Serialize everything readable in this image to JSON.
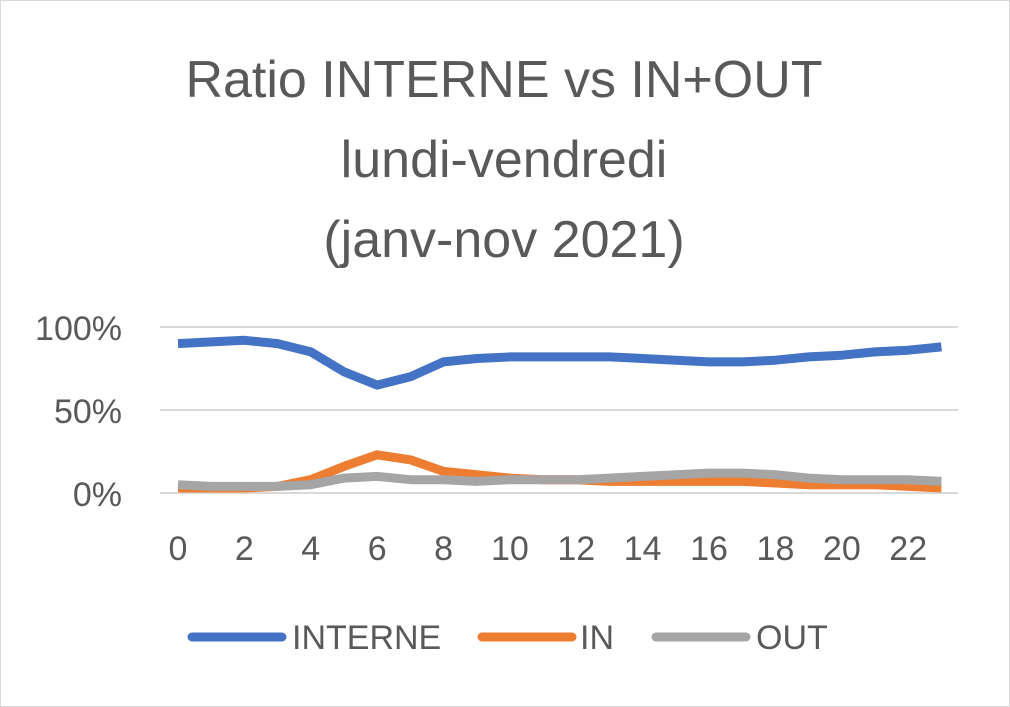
{
  "chart_data": {
    "type": "line",
    "title_lines": [
      "Ratio INTERNE vs IN+OUT",
      "lundi-vendredi",
      "(janv-nov 2021)"
    ],
    "x": [
      0,
      1,
      2,
      3,
      4,
      5,
      6,
      7,
      8,
      9,
      10,
      11,
      12,
      13,
      14,
      15,
      16,
      17,
      18,
      19,
      20,
      21,
      22,
      23
    ],
    "x_ticks": [
      0,
      2,
      4,
      6,
      8,
      10,
      12,
      14,
      16,
      18,
      20,
      22
    ],
    "y_ticks": [
      0,
      50,
      100
    ],
    "y_tick_labels": [
      "0%",
      "50%",
      "100%"
    ],
    "ylim": [
      0,
      100
    ],
    "xlim": [
      0,
      23.5
    ],
    "grid": true,
    "legend_position": "bottom",
    "series": [
      {
        "name": "INTERNE",
        "color": "#4472C4",
        "values": [
          90,
          91,
          92,
          90,
          85,
          73,
          65,
          70,
          79,
          81,
          82,
          82,
          82,
          82,
          81,
          80,
          79,
          79,
          80,
          82,
          83,
          85,
          86,
          88
        ]
      },
      {
        "name": "IN",
        "color": "#ED7D31",
        "values": [
          3,
          3,
          3,
          4,
          8,
          16,
          23,
          20,
          13,
          11,
          9,
          8,
          8,
          7,
          7,
          7,
          7,
          7,
          6,
          5,
          5,
          5,
          4,
          3
        ]
      },
      {
        "name": "OUT",
        "color": "#A5A5A5",
        "values": [
          5,
          4,
          4,
          4,
          5,
          9,
          10,
          8,
          8,
          7,
          8,
          8,
          8,
          9,
          10,
          11,
          12,
          12,
          11,
          9,
          8,
          8,
          8,
          7
        ]
      }
    ]
  }
}
